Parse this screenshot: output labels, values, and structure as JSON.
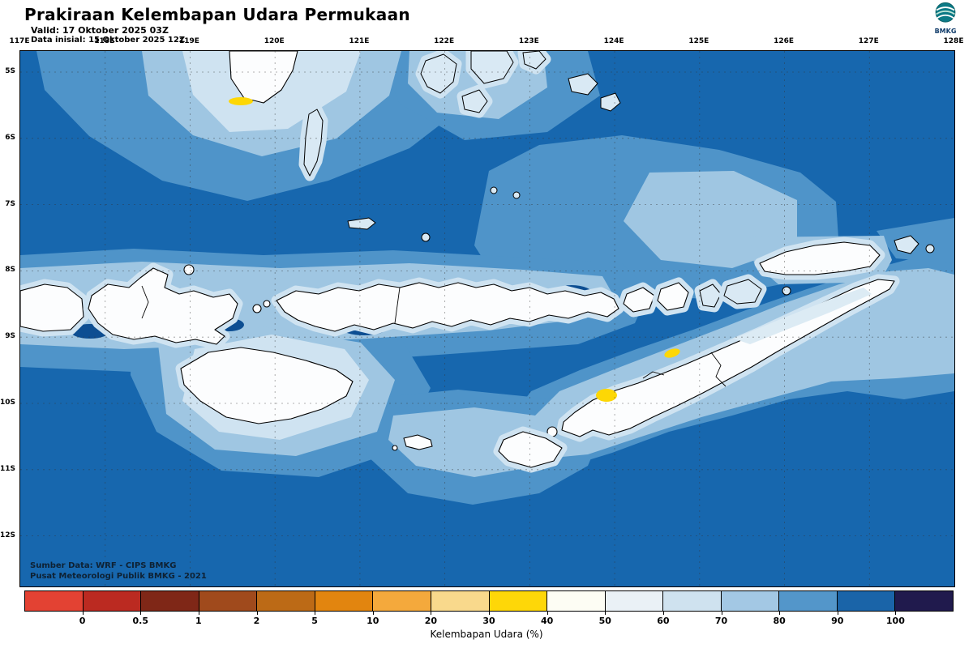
{
  "header": {
    "title": "Prakiraan Kelembapan Udara Permukaan",
    "valid": "Valid: 17 Oktober 2025 03Z",
    "initial": "Data inisial: 15 Oktober 2025 12Z"
  },
  "logo": {
    "label": "BMKG"
  },
  "map": {
    "lon_labels": [
      "117E",
      "118E",
      "119E",
      "120E",
      "121E",
      "122E",
      "123E",
      "124E",
      "125E",
      "126E",
      "127E",
      "128E"
    ],
    "lat_labels": [
      "5S",
      "6S",
      "7S",
      "8S",
      "9S",
      "10S",
      "11S",
      "12S"
    ],
    "source_line1": "Sumber Data: WRF - CIPS BMKG",
    "source_line2": "Pusat Meteorologi Publik BMKG - 2021",
    "colors": {
      "ocean": "#1767ae",
      "sh1": "#4f94c9",
      "sh2": "#9fc6e2",
      "sh3": "#cfe3f1",
      "sh4": "#e9f1f7",
      "land": "#fcfdfe",
      "dark": "#0d4e92",
      "yellow": "#fdd705"
    }
  },
  "colorbar": {
    "caption": "Kelembapan Udara (%)",
    "tick_labels": [
      "0",
      "0.5",
      "1",
      "2",
      "5",
      "10",
      "20",
      "30",
      "40",
      "50",
      "60",
      "70",
      "80",
      "90",
      "100"
    ],
    "segment_colors": [
      "#e34233",
      "#bb2a21",
      "#7f2717",
      "#a04a1c",
      "#bc6a16",
      "#e2850f",
      "#f4a93c",
      "#f9d98c",
      "#fed708",
      "#fdfdf4",
      "#eaf1f6",
      "#cfe2ef",
      "#a3c8e4",
      "#5396ca",
      "#1a64a8",
      "#201a4d"
    ]
  }
}
